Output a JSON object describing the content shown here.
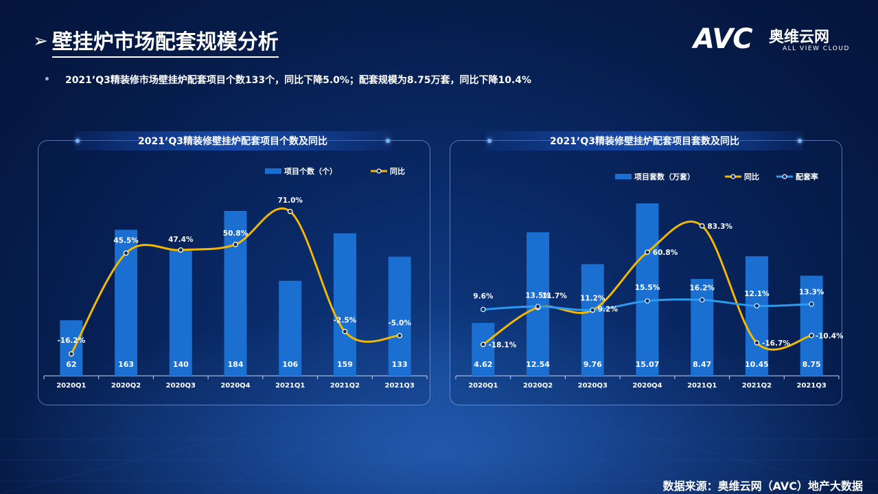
{
  "header": {
    "title": "壁挂炉市场配套规模分析",
    "title_arrow": "➢"
  },
  "logo": {
    "mark": "AVC",
    "cn": "奥维云网",
    "en": "ALL VIEW CLOUD"
  },
  "summary": {
    "bullet": "•",
    "text": "2021’Q3精装修市场壁挂炉配套项目个数133个，同比下降5.0%；配套规模为8.75万套，同比下降10.4%"
  },
  "source": "数据来源：奥维云网（AVC）地产大数据",
  "colors": {
    "bar": "#1a6fd0",
    "yoy": "#f5b800",
    "rate": "#2f9bf0"
  },
  "chart_data": [
    {
      "type": "bar",
      "title": "2021’Q3精装修壁挂炉配套项目个数及同比",
      "categories": [
        "2020Q1",
        "2020Q2",
        "2020Q3",
        "2020Q4",
        "2021Q1",
        "2021Q2",
        "2021Q3"
      ],
      "series": [
        {
          "name": "项目个数（个）",
          "type": "bar",
          "values": [
            62,
            163,
            140,
            184,
            106,
            159,
            133
          ],
          "labels": [
            "62",
            "163",
            "140",
            "184",
            "106",
            "159",
            "133"
          ]
        },
        {
          "name": "同比",
          "type": "line",
          "values": [
            -16.2,
            45.5,
            47.4,
            50.8,
            71.0,
            -2.5,
            -5.0
          ],
          "labels": [
            "-16.2%",
            "45.5%",
            "47.4%",
            "50.8%",
            "71.0%",
            "-2.5%",
            "-5.0%"
          ]
        }
      ],
      "legend": "top-right"
    },
    {
      "type": "bar",
      "title": "2021’Q3精装修壁挂炉配套项目套数及同比",
      "categories": [
        "2020Q1",
        "2020Q2",
        "2020Q3",
        "2020Q4",
        "2021Q1",
        "2021Q2",
        "2021Q3"
      ],
      "series": [
        {
          "name": "项目套数（万套）",
          "type": "bar",
          "values": [
            4.62,
            12.54,
            9.76,
            15.07,
            8.47,
            10.45,
            8.75
          ],
          "labels": [
            "4.62",
            "12.54",
            "9.76",
            "15.07",
            "8.47",
            "10.45",
            "8.75"
          ]
        },
        {
          "name": "同比",
          "type": "line",
          "values": [
            -18.1,
            13.5,
            11.2,
            60.8,
            83.3,
            -16.7,
            -10.4
          ],
          "labels": [
            "-18.1%",
            "13.5%",
            "11.2%",
            "60.8%",
            "83.3%",
            "-16.7%",
            "-10.4%"
          ]
        },
        {
          "name": "配套率",
          "type": "line",
          "values": [
            9.6,
            11.7,
            9.2,
            15.5,
            16.2,
            12.1,
            13.3
          ],
          "labels": [
            "9.6%",
            "11.7%",
            "9.2%",
            "15.5%",
            "16.2%",
            "12.1%",
            "13.3%"
          ]
        }
      ],
      "legend": "top-right"
    }
  ]
}
